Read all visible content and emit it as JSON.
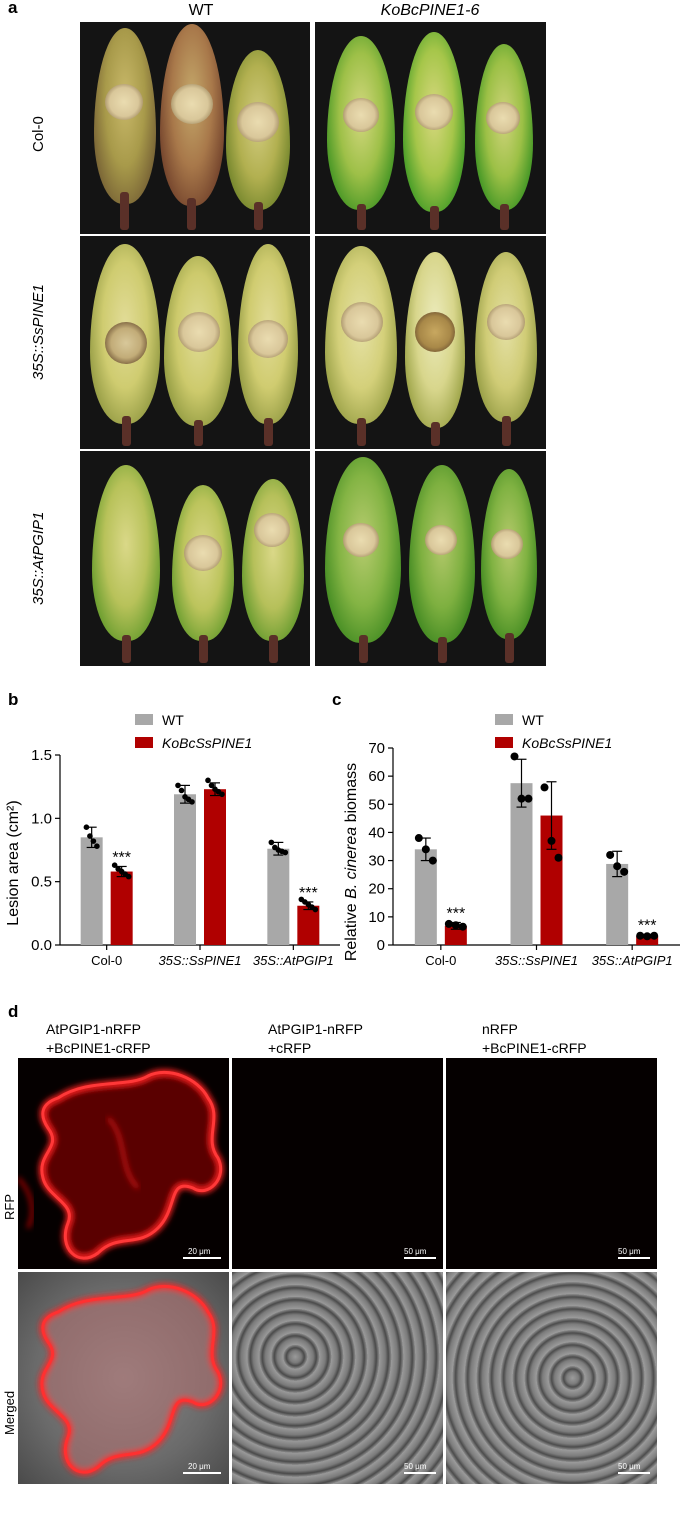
{
  "panel_a": {
    "label": "a",
    "col_headers": [
      "WT",
      "KoBcPINE1-6"
    ],
    "row_labels": [
      "Col-0",
      "35S::SsPINE1",
      "35S::AtPGIP1"
    ]
  },
  "panel_b": {
    "label": "b"
  },
  "panel_c": {
    "label": "c"
  },
  "panel_d": {
    "label": "d",
    "columns": [
      {
        "line1": "AtPGIP1-nRFP",
        "line2": "+BcPINE1-cRFP"
      },
      {
        "line1": "AtPGIP1-nRFP",
        "line2": "+cRFP"
      },
      {
        "line1": "nRFP",
        "line2": "+BcPINE1-cRFP"
      }
    ],
    "row_labels": [
      "RFP",
      "Merged"
    ],
    "scale_bars": [
      "20 μm",
      "50 μm",
      "50 μm",
      "20 μm",
      "50 μm",
      "50 μm"
    ]
  },
  "chart_data": [
    {
      "type": "bar",
      "categories": [
        "Col-0",
        "35S::SsPINE1",
        "35S::AtPGIP1"
      ],
      "series": [
        {
          "name": "WT",
          "values": [
            0.85,
            1.19,
            0.76
          ],
          "errors": [
            0.08,
            0.07,
            0.05
          ],
          "color": "#a8a8a8",
          "points": [
            [
              0.93,
              0.86,
              0.82,
              0.78
            ],
            [
              1.26,
              1.22,
              1.17,
              1.15,
              1.13
            ],
            [
              0.81,
              0.77,
              0.75,
              0.74,
              0.73
            ]
          ],
          "significance": [
            "",
            "",
            ""
          ]
        },
        {
          "name": "KoBcSsPINE1",
          "values": [
            0.58,
            1.23,
            0.31
          ],
          "errors": [
            0.04,
            0.05,
            0.03
          ],
          "color": "#b00000",
          "points": [
            [
              0.63,
              0.6,
              0.58,
              0.56,
              0.54
            ],
            [
              1.3,
              1.26,
              1.23,
              1.21,
              1.19
            ],
            [
              0.36,
              0.34,
              0.32,
              0.3,
              0.28
            ]
          ],
          "significance": [
            "***",
            "",
            "***"
          ]
        }
      ],
      "ylabel": "Lesion area (cm²)",
      "ylim": [
        0,
        1.5
      ],
      "yticks": [
        "0.0",
        "0.5",
        "1.0",
        "1.5"
      ],
      "grid": false,
      "legend": "top"
    },
    {
      "type": "bar",
      "categories": [
        "Col-0",
        "35S::SsPINE1",
        "35S::AtPGIP1"
      ],
      "series": [
        {
          "name": "WT",
          "values": [
            34,
            57.5,
            28.8
          ],
          "errors": [
            4,
            8.5,
            4.5
          ],
          "color": "#a8a8a8",
          "points": [
            [
              38,
              34,
              30
            ],
            [
              67,
              52,
              52
            ],
            [
              32,
              28,
              26
            ]
          ],
          "significance": [
            "",
            "",
            ""
          ]
        },
        {
          "name": "KoBcSsPINE1",
          "values": [
            6.8,
            46,
            3.2
          ],
          "errors": [
            1.2,
            12,
            0.6
          ],
          "color": "#b00000",
          "points": [
            [
              7.5,
              7,
              6.5
            ],
            [
              56,
              37,
              31
            ],
            [
              3.3,
              3.1,
              3.3
            ]
          ],
          "significance": [
            "***",
            "",
            "***"
          ]
        }
      ],
      "ylabel_parts": [
        "Relative ",
        "B. cinerea",
        " biomass"
      ],
      "ylim": [
        0,
        70
      ],
      "yticks": [
        "0",
        "10",
        "20",
        "30",
        "40",
        "50",
        "60",
        "70"
      ],
      "grid": false,
      "legend": "top"
    }
  ]
}
